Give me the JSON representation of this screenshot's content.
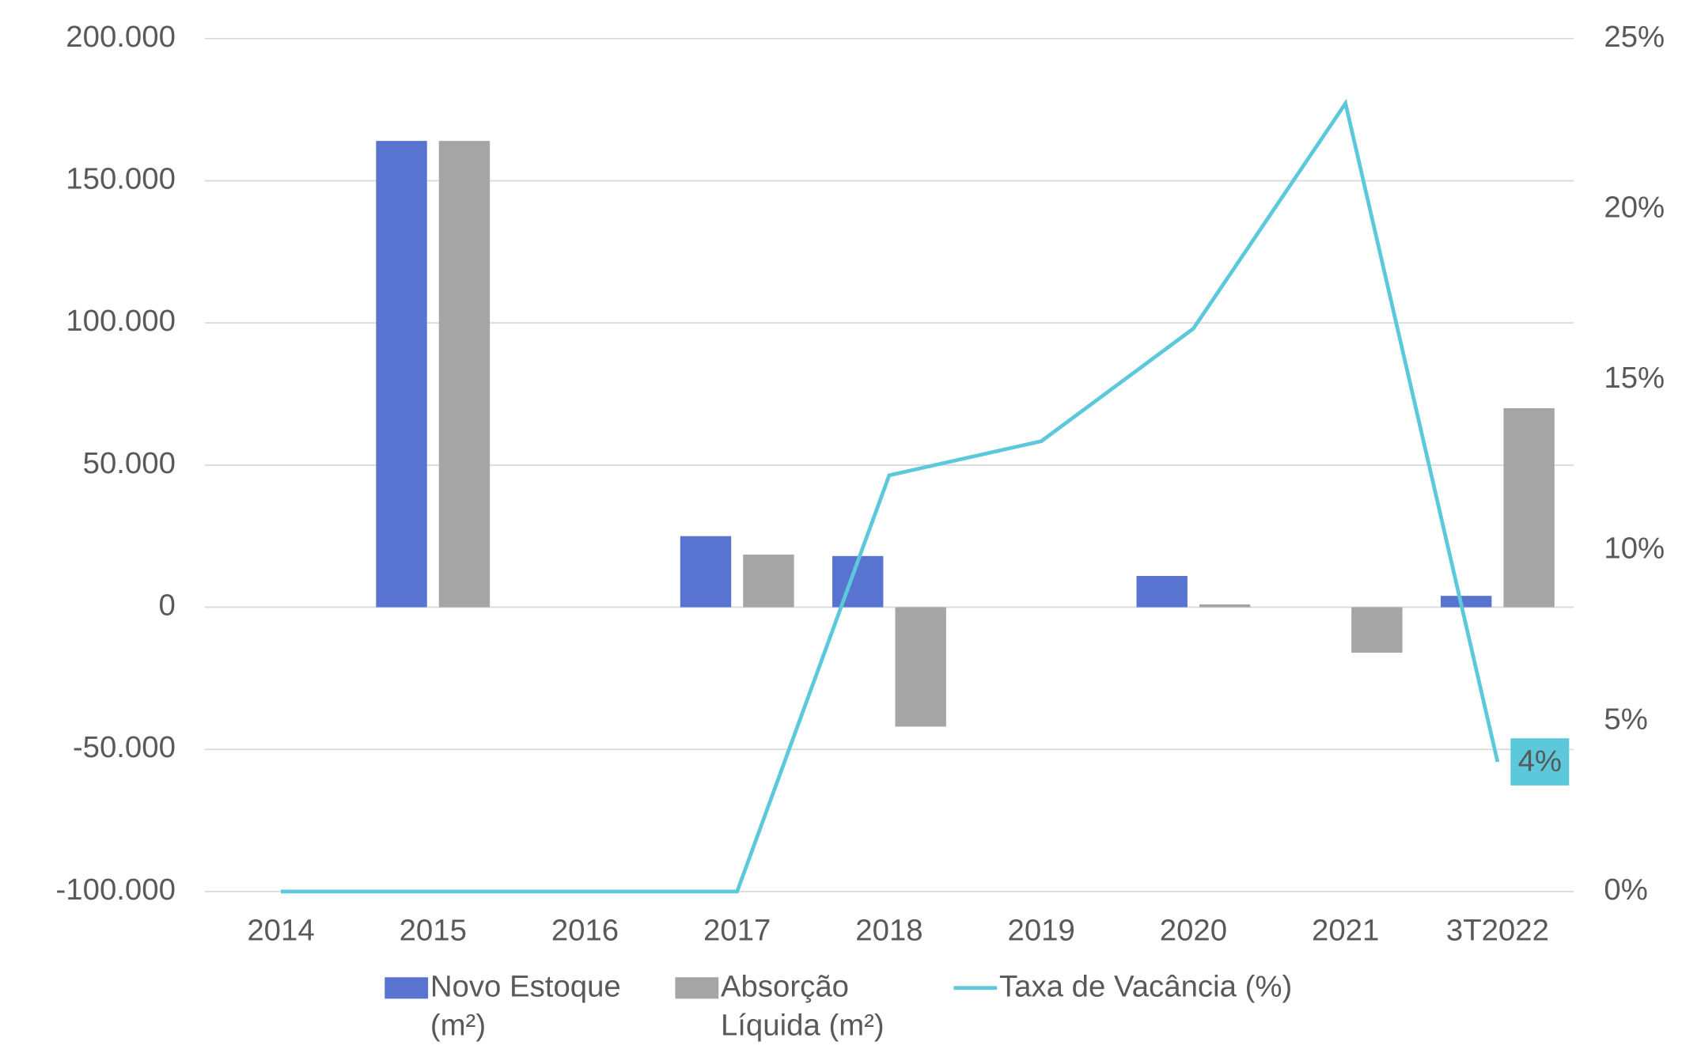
{
  "chart_data": {
    "type": "bar",
    "categories": [
      "2014",
      "2015",
      "2016",
      "2017",
      "2018",
      "2019",
      "2020",
      "2021",
      "3T2022"
    ],
    "series": [
      {
        "name": "Novo Estoque (m²)",
        "color": "#5874d0",
        "values": [
          null,
          164000,
          null,
          25000,
          18000,
          null,
          11000,
          null,
          4000
        ]
      },
      {
        "name": "Absorção Líquida (m²)",
        "color": "#a5a5a5",
        "values": [
          null,
          164000,
          null,
          18500,
          -42000,
          null,
          1000,
          -16000,
          70000
        ]
      },
      {
        "name": "Taxa de Vacância (%)",
        "color": "#5bc8dc",
        "type": "line",
        "axis": "y2",
        "values": [
          0,
          0,
          0,
          0,
          12.2,
          13.2,
          16.5,
          23.1,
          3.8
        ],
        "value_labels": [
          null,
          null,
          null,
          null,
          null,
          null,
          null,
          null,
          "4%"
        ]
      }
    ],
    "ylim": [
      -100000,
      200000
    ],
    "yticks": [
      {
        "value": -100000,
        "label": "-100.000"
      },
      {
        "value": -50000,
        "label": "-50.000"
      },
      0,
      {
        "value": 50000,
        "label": "50.000"
      },
      {
        "value": 100000,
        "label": "100.000"
      },
      {
        "value": 150000,
        "label": "150.000"
      },
      {
        "value": 200000,
        "label": "200.000"
      }
    ],
    "y2lim": [
      0,
      25
    ],
    "y2ticks": [
      {
        "value": 0,
        "label": "0%"
      },
      {
        "value": 5,
        "label": "5%"
      },
      {
        "value": 10,
        "label": "10%"
      },
      {
        "value": 15,
        "label": "15%"
      },
      {
        "value": 20,
        "label": "20%"
      },
      {
        "value": 25,
        "label": "25%"
      }
    ],
    "grid": true,
    "legend": "bottom"
  }
}
